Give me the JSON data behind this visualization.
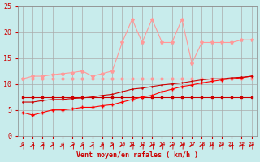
{
  "x": [
    0,
    1,
    2,
    3,
    4,
    5,
    6,
    7,
    8,
    9,
    10,
    11,
    12,
    13,
    14,
    15,
    16,
    17,
    18,
    19,
    20,
    21,
    22,
    23
  ],
  "line1_y": [
    7.5,
    7.5,
    7.5,
    7.5,
    7.5,
    7.5,
    7.5,
    7.5,
    7.5,
    7.5,
    7.5,
    7.5,
    7.5,
    7.5,
    7.5,
    7.5,
    7.5,
    7.5,
    7.5,
    7.5,
    7.5,
    7.5,
    7.5,
    7.5
  ],
  "line2_y": [
    11.0,
    11.0,
    11.0,
    11.0,
    11.0,
    11.0,
    11.0,
    11.0,
    11.0,
    11.0,
    11.0,
    11.0,
    11.0,
    11.0,
    11.0,
    11.0,
    11.0,
    11.0,
    11.0,
    11.0,
    11.0,
    11.0,
    11.0,
    11.0
  ],
  "line3_y": [
    4.5,
    4.0,
    4.5,
    5.0,
    5.0,
    5.2,
    5.5,
    5.5,
    5.8,
    6.0,
    6.5,
    7.0,
    7.5,
    7.8,
    8.5,
    9.0,
    9.5,
    9.8,
    10.2,
    10.5,
    10.8,
    11.0,
    11.2,
    11.5
  ],
  "line4_y": [
    6.5,
    6.5,
    6.8,
    7.0,
    7.0,
    7.2,
    7.3,
    7.5,
    7.8,
    8.0,
    8.5,
    9.0,
    9.2,
    9.5,
    9.8,
    10.0,
    10.2,
    10.5,
    10.8,
    11.0,
    11.0,
    11.2,
    11.3,
    11.5
  ],
  "line5_y": [
    11.0,
    11.5,
    11.5,
    11.8,
    12.0,
    12.2,
    12.5,
    11.5,
    12.0,
    12.5,
    18.0,
    22.5,
    18.0,
    22.5,
    18.0,
    18.0,
    22.5,
    14.0,
    18.0,
    18.0,
    18.0,
    18.0,
    18.5,
    18.5
  ],
  "wind_arrows_x": [
    0,
    1,
    2,
    3,
    4,
    5,
    6,
    7,
    8,
    9,
    10,
    11,
    12,
    13,
    14,
    15,
    16,
    17,
    18,
    19,
    20,
    21,
    22,
    23
  ],
  "bg_color": "#c8ecec",
  "grid_color": "#aaaaaa",
  "line1_color": "#cc0000",
  "line2_color": "#ff9999",
  "line3_color": "#ff0000",
  "line4_color": "#cc0000",
  "line5_color": "#ff9999",
  "xlabel": "Vent moyen/en rafales ( km/h )",
  "ylim": [
    0,
    25
  ],
  "xlim": [
    0,
    23
  ],
  "yticks": [
    0,
    5,
    10,
    15,
    20,
    25
  ],
  "xticks": [
    0,
    1,
    2,
    3,
    4,
    5,
    6,
    7,
    8,
    9,
    10,
    11,
    12,
    13,
    14,
    15,
    16,
    17,
    18,
    19,
    20,
    21,
    22,
    23
  ]
}
